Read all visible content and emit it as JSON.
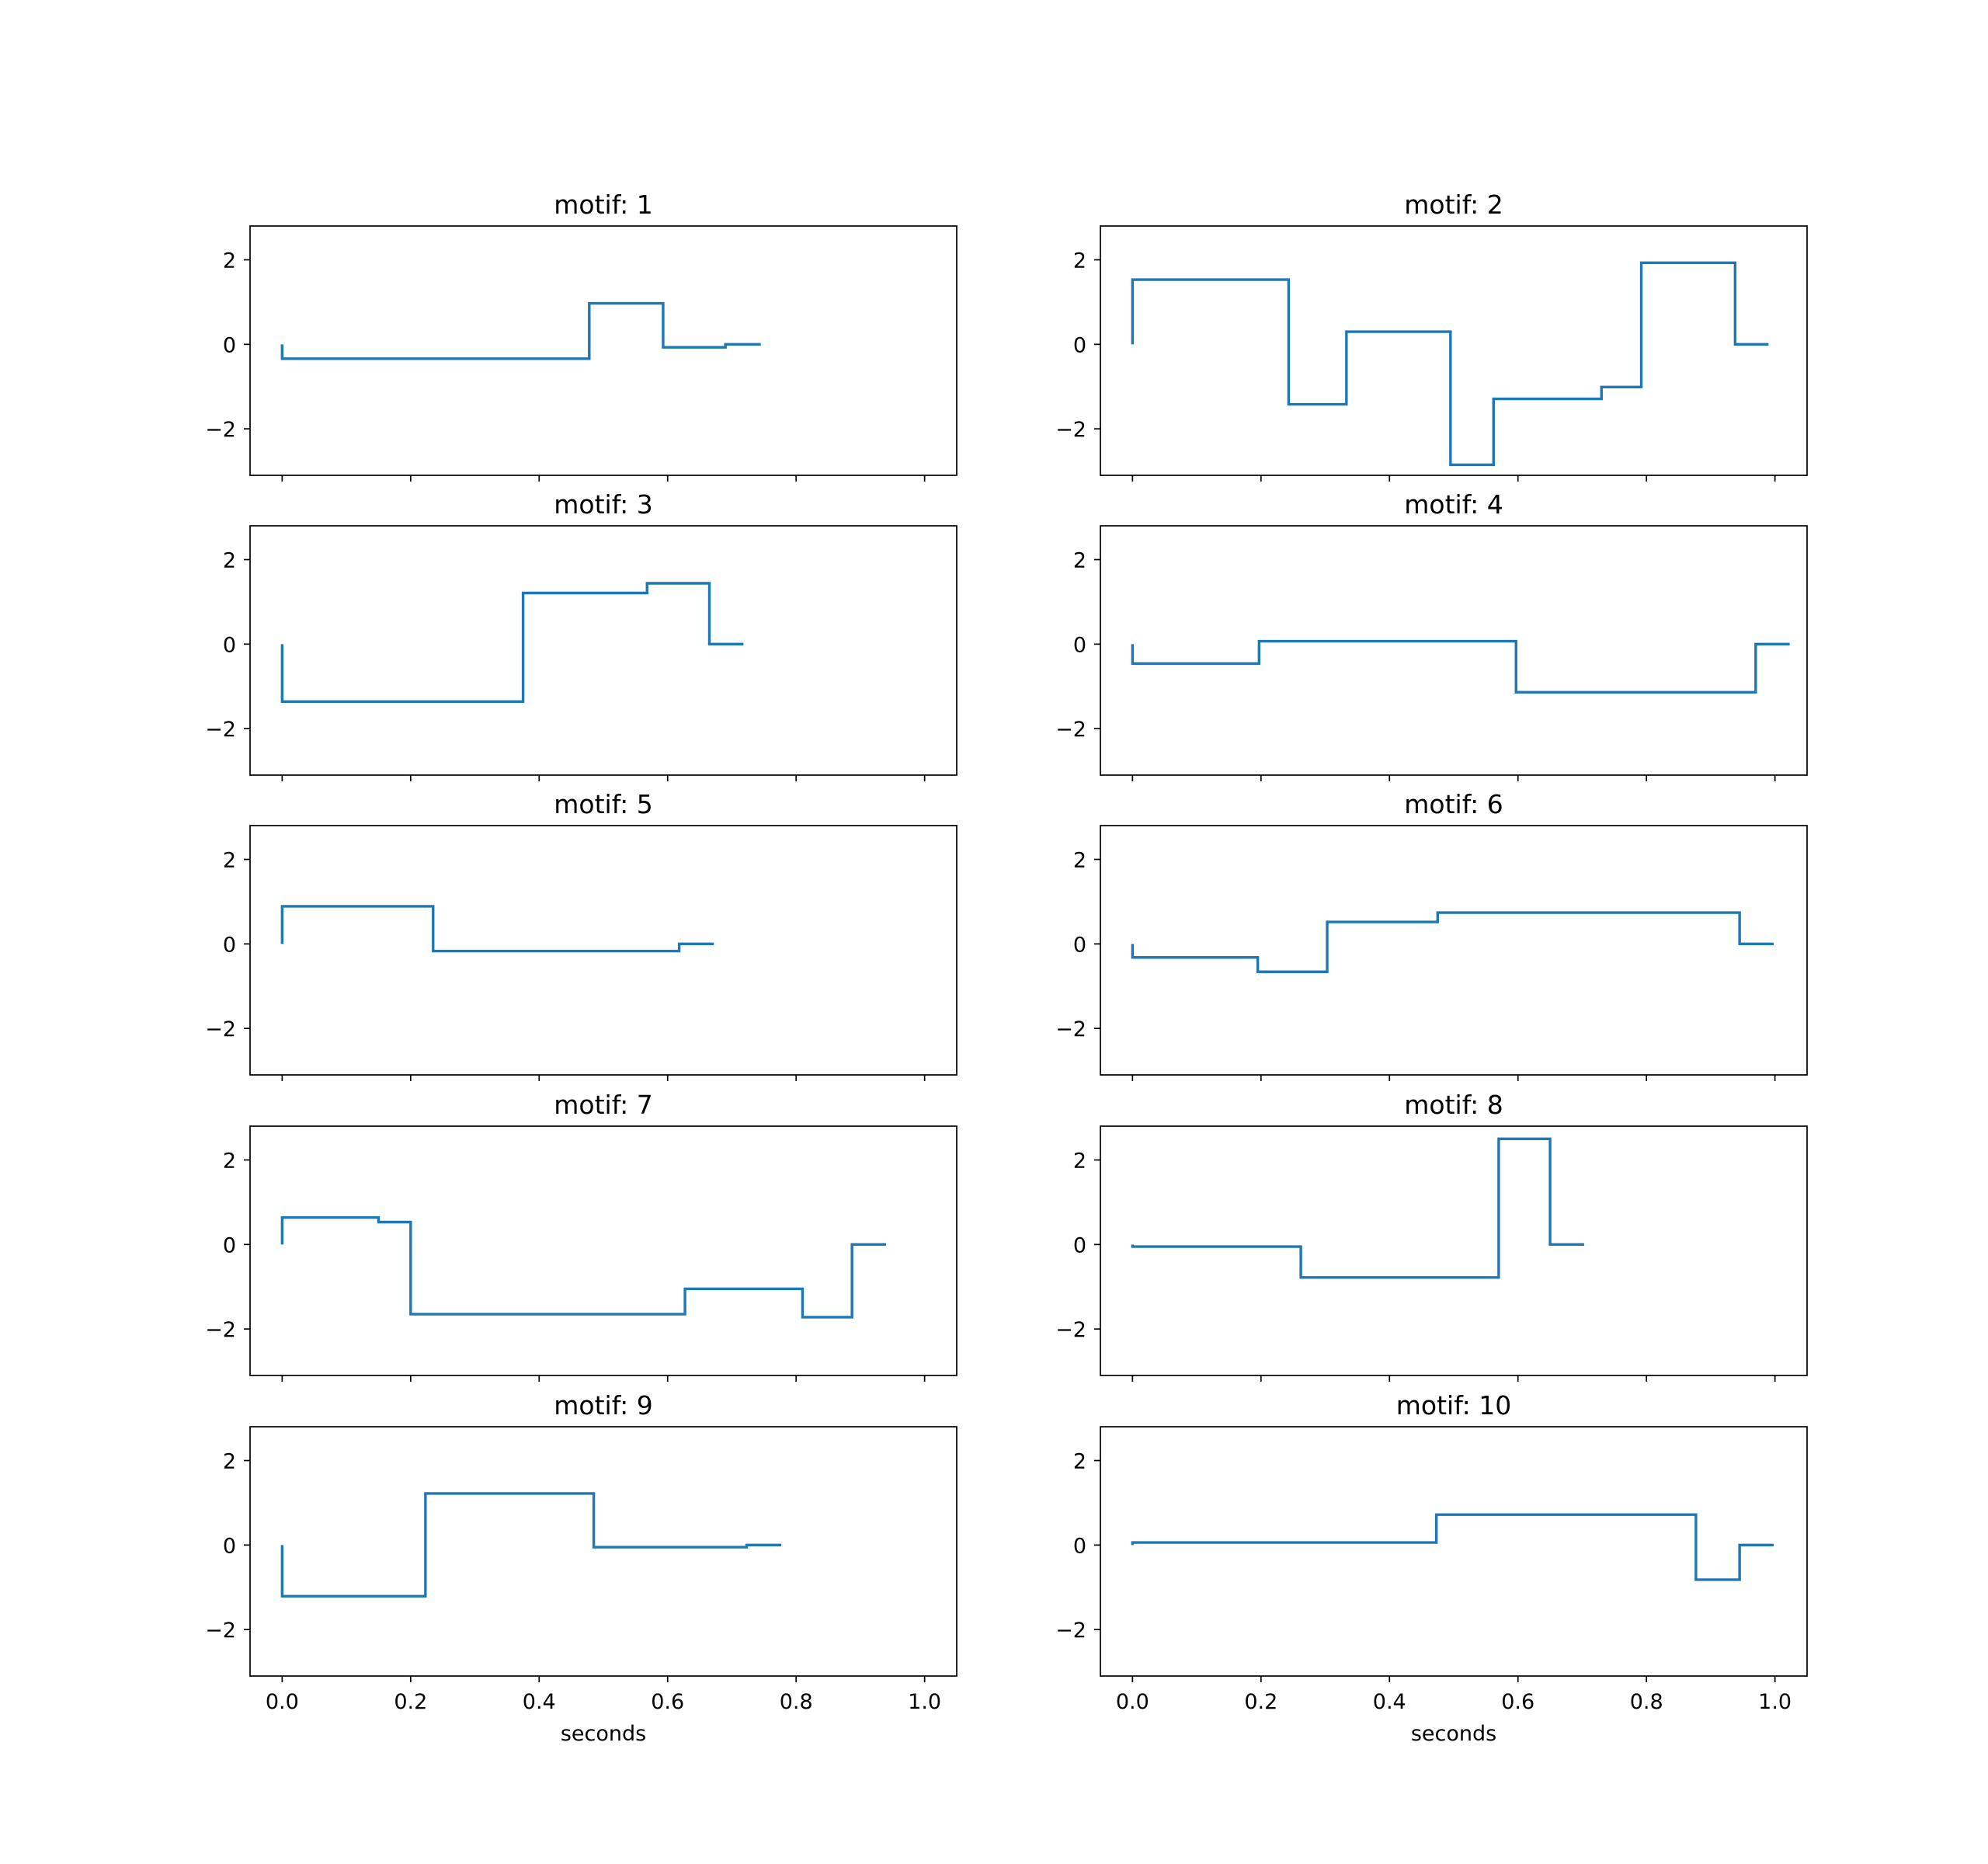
{
  "figure": {
    "line_color": "#1f77b4",
    "frame_color": "#000000"
  },
  "chart_data": [
    {
      "type": "line",
      "title": "motif: 1",
      "xlabel": "",
      "xlim": [
        -0.05,
        1.05
      ],
      "ylim": [
        -3.1,
        2.8
      ],
      "xticks": [
        0.0,
        0.2,
        0.4,
        0.6,
        0.8,
        1.0
      ],
      "xtick_labels": [],
      "yticks": [
        -2,
        0,
        2
      ],
      "ytick_labels": [
        "−2",
        "0",
        "2"
      ],
      "grid": false,
      "series": [
        {
          "x": [
            0.0,
            0.0,
            0.478,
            0.478,
            0.593,
            0.593,
            0.69,
            0.69,
            0.745
          ],
          "y": [
            0.0,
            -0.34,
            -0.34,
            0.97,
            0.97,
            -0.07,
            -0.07,
            0.0,
            0.0
          ]
        }
      ]
    },
    {
      "type": "line",
      "title": "motif: 2",
      "xlabel": "",
      "xlim": [
        -0.05,
        1.05
      ],
      "ylim": [
        -3.1,
        2.8
      ],
      "xticks": [
        0.0,
        0.2,
        0.4,
        0.6,
        0.8,
        1.0
      ],
      "xtick_labels": [],
      "yticks": [
        -2,
        0,
        2
      ],
      "ytick_labels": [
        "−2",
        "0",
        "2"
      ],
      "grid": false,
      "series": [
        {
          "x": [
            0.0,
            0.0,
            0.243,
            0.243,
            0.333,
            0.333,
            0.495,
            0.495,
            0.562,
            0.562,
            0.73,
            0.73,
            0.792,
            0.792,
            0.938,
            0.938,
            0.99
          ],
          "y": [
            0.0,
            1.53,
            1.53,
            -1.42,
            -1.42,
            0.3,
            0.3,
            -2.85,
            -2.85,
            -1.29,
            -1.29,
            -1.01,
            -1.01,
            1.93,
            1.93,
            0.0,
            0.0
          ]
        }
      ]
    },
    {
      "type": "line",
      "title": "motif: 3",
      "xlabel": "",
      "xlim": [
        -0.05,
        1.05
      ],
      "ylim": [
        -3.1,
        2.8
      ],
      "xticks": [
        0.0,
        0.2,
        0.4,
        0.6,
        0.8,
        1.0
      ],
      "xtick_labels": [],
      "yticks": [
        -2,
        0,
        2
      ],
      "ytick_labels": [
        "−2",
        "0",
        "2"
      ],
      "grid": false,
      "series": [
        {
          "x": [
            0.0,
            0.0,
            0.375,
            0.375,
            0.568,
            0.568,
            0.665,
            0.665,
            0.718
          ],
          "y": [
            0.0,
            -1.36,
            -1.36,
            1.21,
            1.21,
            1.44,
            1.44,
            0.0,
            0.0
          ]
        }
      ]
    },
    {
      "type": "line",
      "title": "motif: 4",
      "xlabel": "",
      "xlim": [
        -0.05,
        1.05
      ],
      "ylim": [
        -3.1,
        2.8
      ],
      "xticks": [
        0.0,
        0.2,
        0.4,
        0.6,
        0.8,
        1.0
      ],
      "xtick_labels": [],
      "yticks": [
        -2,
        0,
        2
      ],
      "ytick_labels": [
        "−2",
        "0",
        "2"
      ],
      "grid": false,
      "series": [
        {
          "x": [
            0.0,
            0.0,
            0.197,
            0.197,
            0.597,
            0.597,
            0.97,
            0.97,
            1.023
          ],
          "y": [
            0.0,
            -0.46,
            -0.46,
            0.07,
            0.07,
            -1.14,
            -1.14,
            0.0,
            0.0
          ]
        }
      ]
    },
    {
      "type": "line",
      "title": "motif: 5",
      "xlabel": "",
      "xlim": [
        -0.05,
        1.05
      ],
      "ylim": [
        -3.1,
        2.8
      ],
      "xticks": [
        0.0,
        0.2,
        0.4,
        0.6,
        0.8,
        1.0
      ],
      "xtick_labels": [],
      "yticks": [
        -2,
        0,
        2
      ],
      "ytick_labels": [
        "−2",
        "0",
        "2"
      ],
      "grid": false,
      "series": [
        {
          "x": [
            0.0,
            0.0,
            0.235,
            0.235,
            0.618,
            0.618,
            0.672
          ],
          "y": [
            0.0,
            0.89,
            0.89,
            -0.17,
            -0.17,
            0.0,
            0.0
          ]
        }
      ]
    },
    {
      "type": "line",
      "title": "motif: 6",
      "xlabel": "",
      "xlim": [
        -0.05,
        1.05
      ],
      "ylim": [
        -3.1,
        2.8
      ],
      "xticks": [
        0.0,
        0.2,
        0.4,
        0.6,
        0.8,
        1.0
      ],
      "xtick_labels": [],
      "yticks": [
        -2,
        0,
        2
      ],
      "ytick_labels": [
        "−2",
        "0",
        "2"
      ],
      "grid": false,
      "series": [
        {
          "x": [
            0.0,
            0.0,
            0.195,
            0.195,
            0.303,
            0.303,
            0.475,
            0.475,
            0.945,
            0.945,
            0.998
          ],
          "y": [
            0.0,
            -0.32,
            -0.32,
            -0.66,
            -0.66,
            0.52,
            0.52,
            0.74,
            0.74,
            0.0,
            0.0
          ]
        }
      ]
    },
    {
      "type": "line",
      "title": "motif: 7",
      "xlabel": "",
      "xlim": [
        -0.05,
        1.05
      ],
      "ylim": [
        -3.1,
        2.8
      ],
      "xticks": [
        0.0,
        0.2,
        0.4,
        0.6,
        0.8,
        1.0
      ],
      "xtick_labels": [],
      "yticks": [
        -2,
        0,
        2
      ],
      "ytick_labels": [
        "−2",
        "0",
        "2"
      ],
      "grid": false,
      "series": [
        {
          "x": [
            0.0,
            0.0,
            0.15,
            0.15,
            0.2,
            0.2,
            0.627,
            0.627,
            0.81,
            0.81,
            0.887,
            0.887,
            0.94
          ],
          "y": [
            0.0,
            0.64,
            0.64,
            0.53,
            0.53,
            -1.65,
            -1.65,
            -1.05,
            -1.05,
            -1.72,
            -1.72,
            0.0,
            0.0
          ]
        }
      ]
    },
    {
      "type": "line",
      "title": "motif: 8",
      "xlabel": "",
      "xlim": [
        -0.05,
        1.05
      ],
      "ylim": [
        -3.1,
        2.8
      ],
      "xticks": [
        0.0,
        0.2,
        0.4,
        0.6,
        0.8,
        1.0
      ],
      "xtick_labels": [],
      "yticks": [
        -2,
        0,
        2
      ],
      "ytick_labels": [
        "−2",
        "0",
        "2"
      ],
      "grid": false,
      "series": [
        {
          "x": [
            0.0,
            0.0,
            0.262,
            0.262,
            0.57,
            0.57,
            0.65,
            0.65,
            0.703
          ],
          "y": [
            0.0,
            -0.05,
            -0.05,
            -0.78,
            -0.78,
            2.5,
            2.5,
            0.0,
            0.0
          ]
        }
      ]
    },
    {
      "type": "line",
      "title": "motif: 9",
      "xlabel": "seconds",
      "xlim": [
        -0.05,
        1.05
      ],
      "ylim": [
        -3.1,
        2.8
      ],
      "xticks": [
        0.0,
        0.2,
        0.4,
        0.6,
        0.8,
        1.0
      ],
      "xtick_labels": [
        "0.0",
        "0.2",
        "0.4",
        "0.6",
        "0.8",
        "1.0"
      ],
      "yticks": [
        -2,
        0,
        2
      ],
      "ytick_labels": [
        "−2",
        "0",
        "2"
      ],
      "grid": false,
      "series": [
        {
          "x": [
            0.0,
            0.0,
            0.223,
            0.223,
            0.485,
            0.485,
            0.723,
            0.723,
            0.777
          ],
          "y": [
            0.0,
            -1.21,
            -1.21,
            1.22,
            1.22,
            -0.05,
            -0.05,
            0.0,
            0.0
          ]
        }
      ]
    },
    {
      "type": "line",
      "title": "motif: 10",
      "xlabel": "seconds",
      "xlim": [
        -0.05,
        1.05
      ],
      "ylim": [
        -3.1,
        2.8
      ],
      "xticks": [
        0.0,
        0.2,
        0.4,
        0.6,
        0.8,
        1.0
      ],
      "xtick_labels": [
        "0.0",
        "0.2",
        "0.4",
        "0.6",
        "0.8",
        "1.0"
      ],
      "yticks": [
        -2,
        0,
        2
      ],
      "ytick_labels": [
        "−2",
        "0",
        "2"
      ],
      "grid": false,
      "series": [
        {
          "x": [
            0.0,
            0.0,
            0.473,
            0.473,
            0.877,
            0.877,
            0.945,
            0.945,
            0.998
          ],
          "y": [
            0.0,
            0.06,
            0.06,
            0.72,
            0.72,
            -0.82,
            -0.82,
            0.0,
            0.0
          ]
        }
      ]
    }
  ]
}
